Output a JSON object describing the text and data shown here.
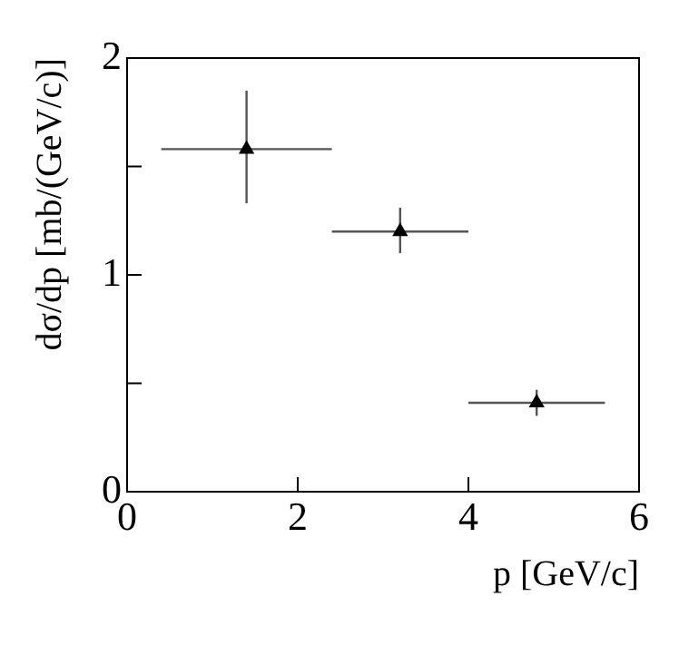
{
  "chart_data": {
    "type": "scatter",
    "xlabel": "p [GeV/c]",
    "ylabel": "dσ/dp [mb/(GeV/c)]",
    "x": [
      1.4,
      3.2,
      4.8
    ],
    "series": [
      {
        "color": "#000000",
        "values": [
          1.58,
          1.2,
          0.41
        ],
        "errors": [
          [
            1.33,
            1.85
          ],
          [
            1.1,
            1.31
          ],
          [
            0.35,
            0.47
          ]
        ],
        "xerrors": [
          [
            0.4,
            2.4
          ],
          [
            2.4,
            4.0
          ],
          [
            4.0,
            5.6
          ]
        ]
      }
    ],
    "xlim": [
      0,
      6
    ],
    "xticks": [
      0,
      2,
      4,
      6
    ],
    "ylim": [
      0,
      2
    ],
    "yticks": [
      0,
      {
        "value": 0.5,
        "label": null
      },
      1,
      {
        "value": 1.5,
        "label": null
      },
      2
    ],
    "marker": "triangle",
    "grid": false,
    "legend": false
  }
}
